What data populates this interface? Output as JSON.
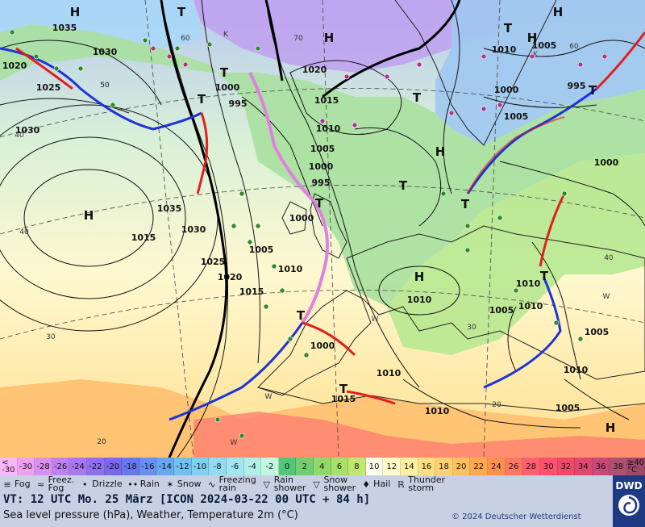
{
  "valid_time": "VT: 12 UTC Mo.  25 März [ICON 2024-03-22  00 UTC + 84 h]",
  "description": "Sea level pressure (hPa), Weather, Temperature 2m (°C)",
  "copyright": "© 2024 Deutscher Wetterdienst",
  "logo_text": "DWD",
  "temperature_scale": {
    "unit_label": "°C",
    "low_label": "<\n-30",
    "high_label": "≥40\n°C",
    "steps": [
      "-30",
      "-28",
      "-26",
      "-24",
      "-22",
      "-20",
      "-18",
      "-16",
      "-14",
      "-12",
      "-10",
      "-8",
      "-6",
      "-4",
      "-2",
      "0",
      "2",
      "4",
      "6",
      "8",
      "10",
      "12",
      "14",
      "16",
      "18",
      "20",
      "22",
      "24",
      "26",
      "28",
      "30",
      "32",
      "34",
      "36",
      "38"
    ],
    "colors": [
      "#f0a0f0",
      "#d890f0",
      "#c080f0",
      "#a878f0",
      "#9070f0",
      "#7868f0",
      "#6878f0",
      "#6890f0",
      "#68a8f0",
      "#70c0f0",
      "#80d0f0",
      "#90dcf0",
      "#a0e8f0",
      "#b0f0e8",
      "#c0f8e0",
      "#50c878",
      "#70d070",
      "#90d868",
      "#a8e068",
      "#c0e870",
      "#fffff0",
      "#fffccc",
      "#fff0a0",
      "#ffe080",
      "#ffd070",
      "#ffc060",
      "#ffa850",
      "#ff9050",
      "#ff7860",
      "#ff6070",
      "#ff5070",
      "#f04868",
      "#e04870",
      "#c84878",
      "#b05070"
    ]
  },
  "legend": [
    {
      "symbol": "≡",
      "label": "Fog"
    },
    {
      "symbol": "≈",
      "label": "Freez.\nFog"
    },
    {
      "symbol": "•",
      "label": "Drizzle"
    },
    {
      "symbol": "••",
      "label": "Rain"
    },
    {
      "symbol": "✶",
      "label": "Snow"
    },
    {
      "symbol": "∿",
      "label": "Freezing\nrain"
    },
    {
      "symbol": "▽",
      "label": "Rain\nshower"
    },
    {
      "symbol": "▽",
      "label": "Snow\nshower"
    },
    {
      "symbol": "♦",
      "label": "Hail"
    },
    {
      "symbol": "ℝ",
      "label": "Thunder\nstorm"
    }
  ],
  "pressure_labels": [
    "1035",
    "1030",
    "1020",
    "1025",
    "1030",
    "1020",
    "1015",
    "1010",
    "1005",
    "1000",
    "995",
    "1000",
    "995",
    "1000",
    "1005",
    "1010",
    "1015",
    "1020",
    "1025",
    "1030",
    "1035",
    "1015",
    "1010",
    "1005",
    "1000",
    "995",
    "1005",
    "1000",
    "1010",
    "1005",
    "1010",
    "1005",
    "1010",
    "1000",
    "1010",
    "1015",
    "1010",
    "1005",
    "1010",
    "1000",
    "1010",
    "1015",
    "1005",
    "1010"
  ],
  "centers": [
    "H",
    "T",
    "H",
    "T",
    "H",
    "T",
    "T",
    "T",
    "T",
    "T",
    "H",
    "T",
    "H",
    "T",
    "H",
    "T",
    "T",
    "T",
    "H",
    "H"
  ],
  "temp_labels": [
    "60",
    "50",
    "40",
    "40",
    "30",
    "20",
    "20",
    "50",
    "60",
    "70",
    "40",
    "30",
    "K",
    "K",
    "W",
    "W",
    "W",
    "W"
  ]
}
